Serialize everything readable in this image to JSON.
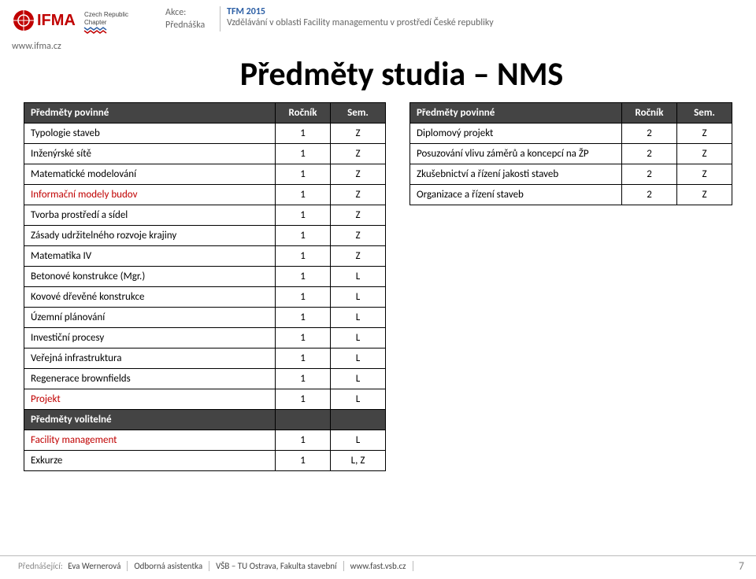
{
  "header": {
    "url": "www.ifma.cz",
    "meta": {
      "label_event": "Akce:",
      "label_lecture": "Přednáška",
      "event": "TFM 2015",
      "lecture": "Vzdělávání v oblasti Facility managementu v prostředí České republiky"
    }
  },
  "title": "Předměty studia – NMS",
  "left_table": {
    "headers": [
      "Předměty povinné",
      "Ročník",
      "Sem."
    ],
    "rows": [
      {
        "name": "Typologie staveb",
        "yr": "1",
        "sem": "Z"
      },
      {
        "name": "Inženýrské sítě",
        "yr": "1",
        "sem": "Z"
      },
      {
        "name": "Matematické modelování",
        "yr": "1",
        "sem": "Z"
      },
      {
        "name": "Informační modely budov",
        "yr": "1",
        "sem": "Z",
        "hl": true
      },
      {
        "name": "Tvorba prostředí a sídel",
        "yr": "1",
        "sem": "Z"
      },
      {
        "name": "Zásady udržitelného rozvoje krajiny",
        "yr": "1",
        "sem": "Z"
      },
      {
        "name": "Matematika IV",
        "yr": "1",
        "sem": "Z"
      },
      {
        "name": "Betonové konstrukce (Mgr.)",
        "yr": "1",
        "sem": "L"
      },
      {
        "name": "Kovové  dřevěné konstrukce",
        "yr": "1",
        "sem": "L"
      },
      {
        "name": "Územní plánování",
        "yr": "1",
        "sem": "L"
      },
      {
        "name": "Investiční procesy",
        "yr": "1",
        "sem": "L"
      },
      {
        "name": "Veřejná infrastruktura",
        "yr": "1",
        "sem": "L"
      },
      {
        "name": "Regenerace brownfields",
        "yr": "1",
        "sem": "L"
      },
      {
        "name": "Projekt",
        "yr": "1",
        "sem": "L",
        "hl": true
      }
    ],
    "section_label": "Předměty volitelné",
    "rows2": [
      {
        "name": "Facility management",
        "yr": "1",
        "sem": "L",
        "hl": true
      },
      {
        "name": "Exkurze",
        "yr": "1",
        "sem": "L, Z"
      }
    ]
  },
  "right_table": {
    "headers": [
      "Předměty povinné",
      "Ročník",
      "Sem."
    ],
    "rows": [
      {
        "name": "Diplomový projekt",
        "yr": "2",
        "sem": "Z"
      },
      {
        "name": "Posuzování vlivu záměrů a koncepcí na ŽP",
        "yr": "2",
        "sem": "Z"
      },
      {
        "name": "Zkušebnictví a řízení jakosti staveb",
        "yr": "2",
        "sem": "Z"
      },
      {
        "name": "Organizace a řízení staveb",
        "yr": "2",
        "sem": "Z"
      }
    ]
  },
  "footer": {
    "label_speaker": "Přednášející:",
    "speaker": "Eva Wernerová",
    "role": "Odborná asistentka",
    "org": "VŠB – TU Ostrava, Fakulta stavební",
    "web": "www.fast.vsb.cz",
    "page": "7"
  },
  "colors": {
    "header_bg": "#444444",
    "header_fg": "#ffffff",
    "highlight": "#c00000",
    "meta_event": "#2c5fa5",
    "text_gray": "#666666"
  }
}
